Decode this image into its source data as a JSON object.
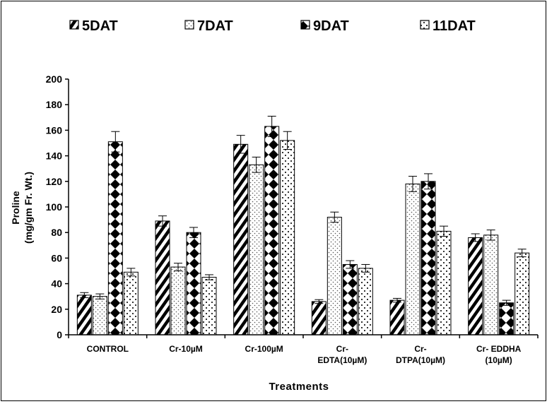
{
  "chart_data": {
    "type": "bar",
    "title": "",
    "xlabel": "Treatments",
    "ylabel": [
      "Proline",
      "(mg/gm Fr. Wt.)"
    ],
    "ylim": [
      0,
      200
    ],
    "yticks": [
      0,
      20,
      40,
      60,
      80,
      100,
      120,
      140,
      160,
      180,
      200
    ],
    "grid": false,
    "legend_position": "top",
    "categories": [
      [
        "CONTROL"
      ],
      [
        "Cr-10µM"
      ],
      [
        "Cr-100µM"
      ],
      [
        "Cr-",
        "EDTA(10µM)"
      ],
      [
        "Cr-",
        "DTPA(10µM)"
      ],
      [
        "Cr- EDDHA",
        "(10µM)"
      ]
    ],
    "series": [
      {
        "name": "5DAT",
        "pattern": "diagonal-stripes",
        "values": [
          31,
          89,
          149,
          26,
          27,
          76
        ],
        "errors": [
          2,
          4,
          7,
          1.5,
          1.5,
          3
        ]
      },
      {
        "name": "7DAT",
        "pattern": "dots",
        "values": [
          30,
          53,
          133,
          92,
          118,
          78
        ],
        "errors": [
          2,
          3,
          6,
          4,
          6,
          4
        ]
      },
      {
        "name": "9DAT",
        "pattern": "diamonds",
        "values": [
          151,
          80,
          163,
          55,
          120,
          25
        ],
        "errors": [
          8,
          4,
          8,
          3,
          6,
          2
        ]
      },
      {
        "name": "11DAT",
        "pattern": "checker-dots",
        "values": [
          49,
          45,
          152,
          52,
          81,
          64
        ],
        "errors": [
          3,
          2,
          7,
          3,
          4,
          3
        ]
      }
    ]
  }
}
